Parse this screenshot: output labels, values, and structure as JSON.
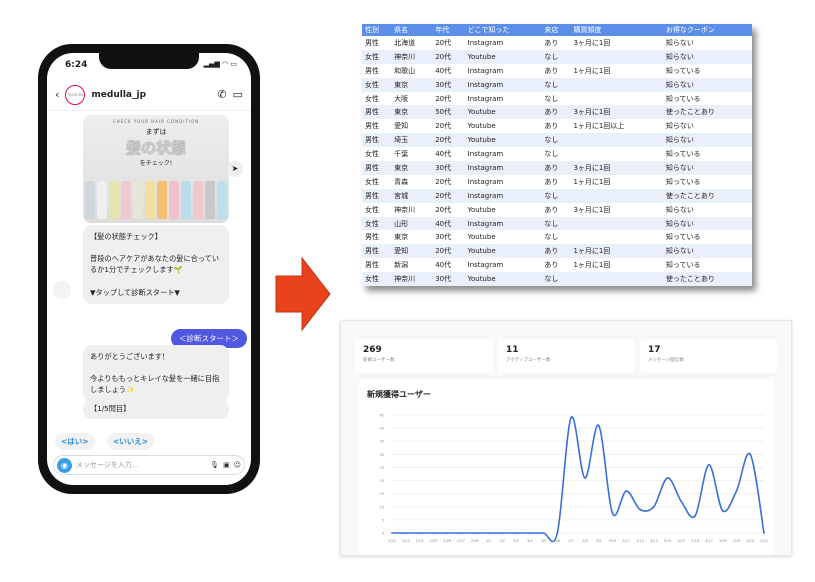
{
  "phone": {
    "time": "6:24",
    "status_icons": "signal wifi battery",
    "username": "medulla_jp",
    "avatar_text": "medulla",
    "banner": {
      "small": "CHECK YOUR HAIR CONDITION",
      "line1": "まずは",
      "big": "髪の状態",
      "line3": "をチェック!"
    },
    "bubble1": "【髪の状態チェック】\n\n普段のヘアケアがあなたの髪に合っているか1分でチェックします🌱\n\n▼タップして診断スタート▼",
    "sent": "＜診断スタート＞",
    "bubble2": "ありがとうございます！\n\n今よりももっとキレイな髪を一緒に目指しましょう✨",
    "bubble3": "【1/5問目】",
    "quick_replies": [
      "<はい>",
      "<いいえ>"
    ],
    "input_placeholder": "メッセージを入力..."
  },
  "table": {
    "headers": [
      "性別",
      "県名",
      "年代",
      "どこで知った",
      "来店",
      "購買頻度",
      "お得なクーポン"
    ],
    "rows": [
      [
        "男性",
        "北海道",
        "20代",
        "Instagram",
        "あり",
        "3ヶ月に1回",
        "知らない"
      ],
      [
        "女性",
        "神奈川",
        "20代",
        "Youtube",
        "なし",
        "",
        "知らない"
      ],
      [
        "男性",
        "和歌山",
        "40代",
        "Instagram",
        "あり",
        "1ヶ月に1回",
        "知っている"
      ],
      [
        "女性",
        "東京",
        "30代",
        "Instagram",
        "なし",
        "",
        "知らない"
      ],
      [
        "女性",
        "大阪",
        "20代",
        "Instagram",
        "なし",
        "",
        "知っている"
      ],
      [
        "男性",
        "東京",
        "50代",
        "Youtube",
        "あり",
        "3ヶ月に1回",
        "使ったことあり"
      ],
      [
        "男性",
        "愛知",
        "20代",
        "Youtube",
        "あり",
        "1ヶ月に1回以上",
        "知らない"
      ],
      [
        "男性",
        "埼玉",
        "20代",
        "Youtube",
        "なし",
        "",
        "知らない"
      ],
      [
        "女性",
        "千葉",
        "40代",
        "Instagram",
        "なし",
        "",
        "知っている"
      ],
      [
        "男性",
        "東京",
        "30代",
        "Instagram",
        "あり",
        "3ヶ月に1回",
        "知らない"
      ],
      [
        "女性",
        "青森",
        "20代",
        "Instagram",
        "あり",
        "1ヶ月に1回",
        "知っている"
      ],
      [
        "男性",
        "宮城",
        "20代",
        "Instagram",
        "なし",
        "",
        "使ったことあり"
      ],
      [
        "女性",
        "神奈川",
        "20代",
        "Youtube",
        "あり",
        "3ヶ月に1回",
        "知らない"
      ],
      [
        "女性",
        "山形",
        "40代",
        "Instagram",
        "なし",
        "",
        "知らない"
      ],
      [
        "男性",
        "東京",
        "30代",
        "Youtube",
        "なし",
        "",
        "知っている"
      ],
      [
        "男性",
        "愛知",
        "20代",
        "Youtube",
        "あり",
        "1ヶ月に1回",
        "知らない"
      ],
      [
        "男性",
        "新潟",
        "40代",
        "Instagram",
        "あり",
        "1ヶ月に1回",
        "知っている"
      ],
      [
        "女性",
        "神奈川",
        "30代",
        "Youtube",
        "なし",
        "",
        "使ったことあり"
      ]
    ]
  },
  "dashboard": {
    "stats": [
      {
        "value": "269",
        "label": "新規ユーザー数"
      },
      {
        "value": "11",
        "label": "アクティブユーザー数"
      },
      {
        "value": "17",
        "label": "メッセージ配信数"
      }
    ]
  },
  "chart_data": {
    "type": "line",
    "title": "新規獲得ユーザー",
    "categories": [
      "2/22",
      "2/23",
      "2/24",
      "2/25",
      "2/26",
      "2/27",
      "2/28",
      "3/1",
      "3/2",
      "3/3",
      "3/4",
      "3/5",
      "3/6",
      "3/7",
      "3/8",
      "3/9",
      "3/10",
      "3/11",
      "3/12",
      "3/13",
      "3/14",
      "3/15",
      "3/16",
      "3/17",
      "3/18",
      "3/19",
      "3/20",
      "3/21"
    ],
    "values": [
      0,
      0,
      0,
      0,
      0,
      0,
      0,
      0,
      0,
      0,
      0,
      0,
      0,
      44,
      21,
      41,
      7.5,
      16,
      9,
      10,
      21,
      12,
      6.5,
      26,
      8.5,
      16,
      30,
      0
    ],
    "ylim": [
      0,
      45
    ],
    "yticks": [
      0,
      5,
      10,
      15,
      20,
      25,
      30,
      35,
      40,
      45
    ],
    "grid": true,
    "color": "#3b6fd8"
  },
  "colors": {
    "accent": "#5057e0",
    "table_header": "#5b8ee8",
    "arrow": "#e8431c"
  }
}
